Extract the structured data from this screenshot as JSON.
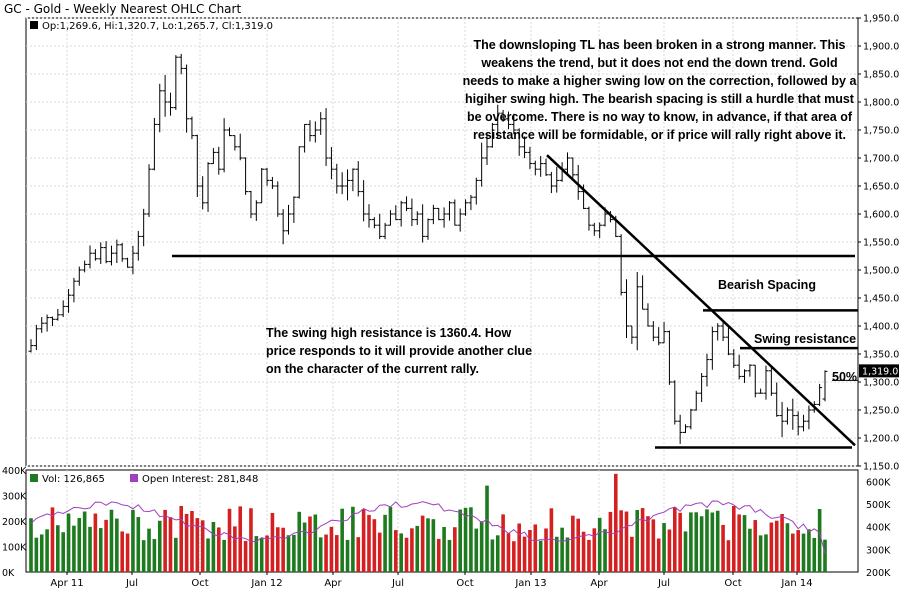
{
  "title": "GC - Gold - Weekly Nearest OHLC Chart",
  "ohlc_legend": "Op:1,269.6, Hi:1,320.7, Lo:1,265.7, Cl:1,319.0",
  "vol_legend": "Vol: 126,865",
  "oi_legend": "Open Interest: 281,848",
  "last_price_label": "1,319.0",
  "annotations": {
    "main": "The downsloping TL has been broken in a strong manner. This weakens the trend, but it does not end the down trend. Gold needs to make a higher swing low on the correction, followed by a higiher swing high.  The bearish spacing is still a hurdle that must be overcome.  There is no way to know, in advance, if that area of resistance will be formidable, or if price will rally right above it.",
    "swing": "The swing high resistance is 1360.4.  How price responds to it will provide another clue on the character of the current rally.",
    "bearish_spacing": "Bearish Spacing",
    "swing_resistance": "Swing resistance",
    "fifty_pct": "50%"
  },
  "colors": {
    "up": "#1e7a1e",
    "down": "#d42020",
    "oi": "#a040c0",
    "ohlc": "#000000"
  },
  "chart_data": [
    {
      "type": "ohlc",
      "title": "GC - Gold - Weekly Nearest OHLC Chart",
      "x_ticks": [
        "Apr 11",
        "Jul",
        "Oct",
        "Jan 12",
        "Apr",
        "Jul",
        "Oct",
        "Jan 13",
        "Apr",
        "Jul",
        "Oct",
        "Jan 14"
      ],
      "y_ticks": [
        "1,150.0",
        "1,200.0",
        "1,250.0",
        "1,300.0",
        "1,350.0",
        "1,400.0",
        "1,450.0",
        "1,500.0",
        "1,550.0",
        "1,600.0",
        "1,650.0",
        "1,700.0",
        "1,750.0",
        "1,800.0",
        "1,850.0",
        "1,900.0",
        "1,950.0"
      ],
      "ylim": [
        1150,
        1950
      ],
      "closes": [
        1365,
        1395,
        1405,
        1415,
        1412,
        1420,
        1435,
        1455,
        1480,
        1500,
        1510,
        1530,
        1520,
        1540,
        1515,
        1530,
        1545,
        1520,
        1505,
        1530,
        1560,
        1600,
        1680,
        1760,
        1820,
        1800,
        1790,
        1880,
        1860,
        1770,
        1740,
        1650,
        1620,
        1690,
        1710,
        1680,
        1750,
        1740,
        1720,
        1700,
        1640,
        1600,
        1620,
        1680,
        1660,
        1650,
        1600,
        1570,
        1600,
        1630,
        1720,
        1760,
        1740,
        1750,
        1770,
        1700,
        1680,
        1650,
        1650,
        1660,
        1680,
        1640,
        1600,
        1590,
        1580,
        1560,
        1580,
        1600,
        1590,
        1620,
        1610,
        1590,
        1600,
        1560,
        1590,
        1610,
        1590,
        1600,
        1620,
        1580,
        1600,
        1620,
        1630,
        1660,
        1700,
        1720,
        1760,
        1780,
        1770,
        1760,
        1750,
        1720,
        1710,
        1690,
        1680,
        1690,
        1670,
        1650,
        1660,
        1680,
        1700,
        1670,
        1640,
        1610,
        1580,
        1570,
        1580,
        1600,
        1590,
        1560,
        1460,
        1400,
        1380,
        1470,
        1430,
        1400,
        1380,
        1370,
        1390,
        1300,
        1230,
        1210,
        1220,
        1250,
        1280,
        1310,
        1340,
        1390,
        1400,
        1380,
        1350,
        1330,
        1310,
        1320,
        1330,
        1280,
        1280,
        1320,
        1280,
        1240,
        1230,
        1250,
        1240,
        1220,
        1230,
        1250,
        1260,
        1290,
        1319
      ],
      "trendlines": [
        {
          "name": "Downsloping TL",
          "from": [
            "2012-12",
            1705
          ],
          "to": [
            "2014-03",
            1190
          ]
        },
        {
          "name": "Support 1525",
          "from": [
            "2011-08",
            1525
          ],
          "to": [
            "2014-03",
            1525
          ]
        },
        {
          "name": "Bearish Spacing",
          "value": 1428
        },
        {
          "name": "Swing resistance",
          "value": 1360.4
        },
        {
          "name": "Swing low support",
          "value": 1183
        }
      ]
    },
    {
      "type": "bar",
      "title": "Volume / Open Interest",
      "y_ticks_left": [
        "0K",
        "100K",
        "200K",
        "300K",
        "400K"
      ],
      "y_ticks_right": [
        "200K",
        "300K",
        "400K",
        "500K",
        "600K"
      ],
      "ylim_left": [
        0,
        400000
      ],
      "ylim_right": [
        200000,
        650000
      ],
      "last_volume": 126865,
      "last_open_interest": 281848
    }
  ]
}
